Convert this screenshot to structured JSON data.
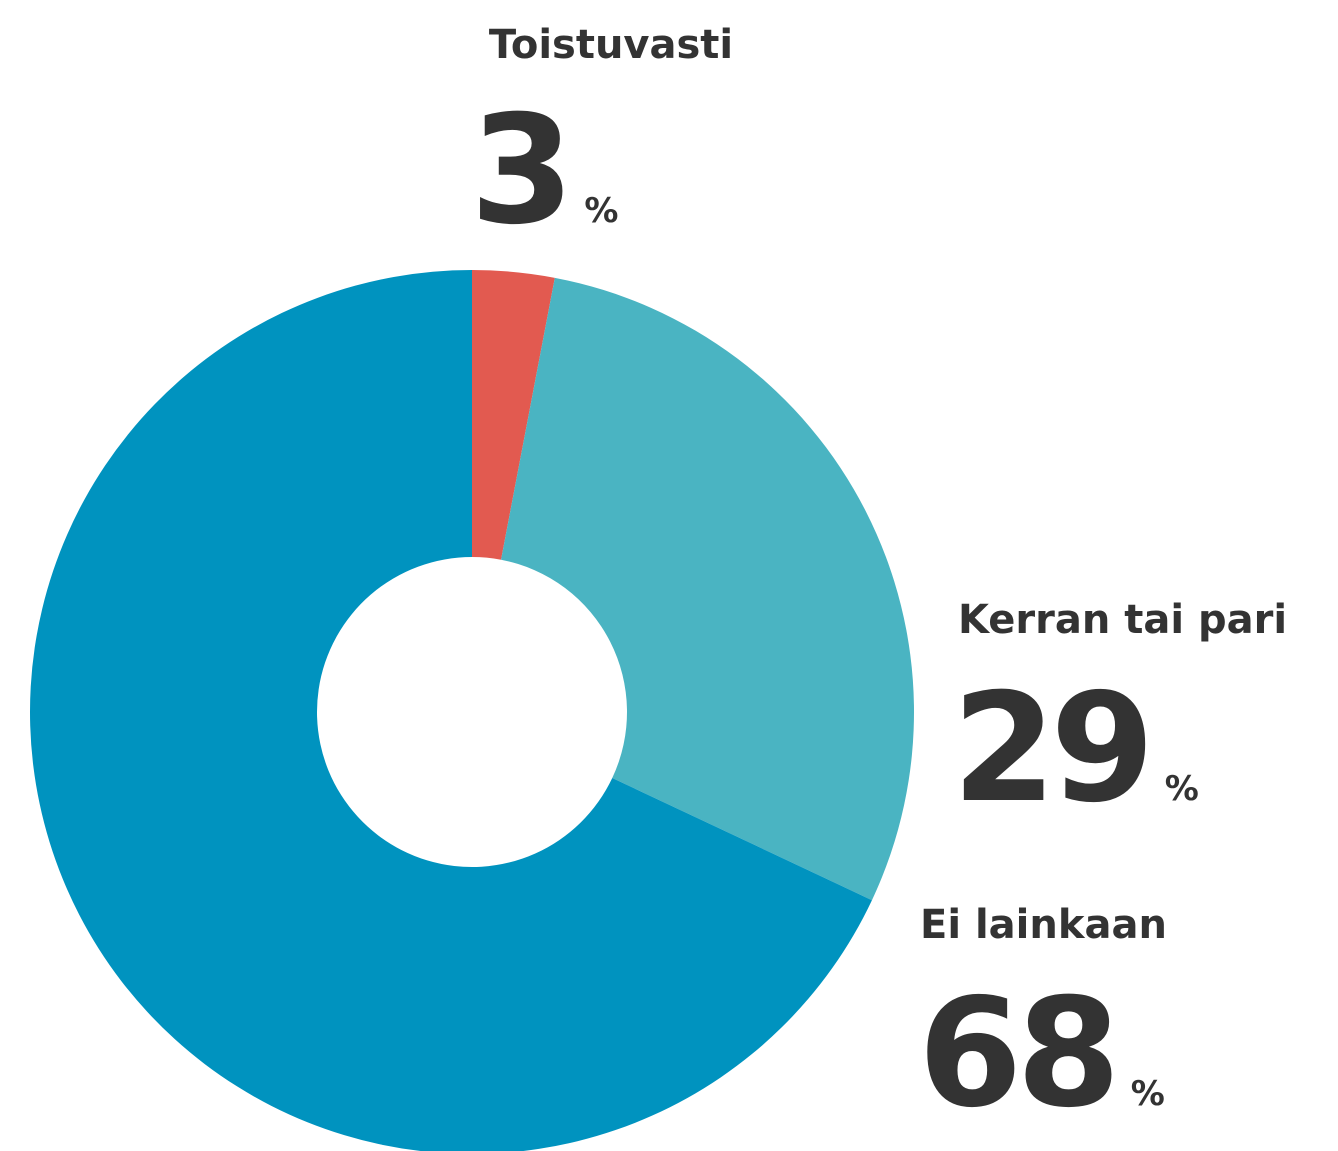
{
  "chart_data": {
    "type": "donut",
    "categories": [
      "Toistuvasti",
      "Kerran tai pari",
      "Ei lainkaan"
    ],
    "values": [
      3,
      29,
      68
    ],
    "unit": "%",
    "colors": [
      "#e25a50",
      "#4ab4c2",
      "#0093bf"
    ]
  }
}
